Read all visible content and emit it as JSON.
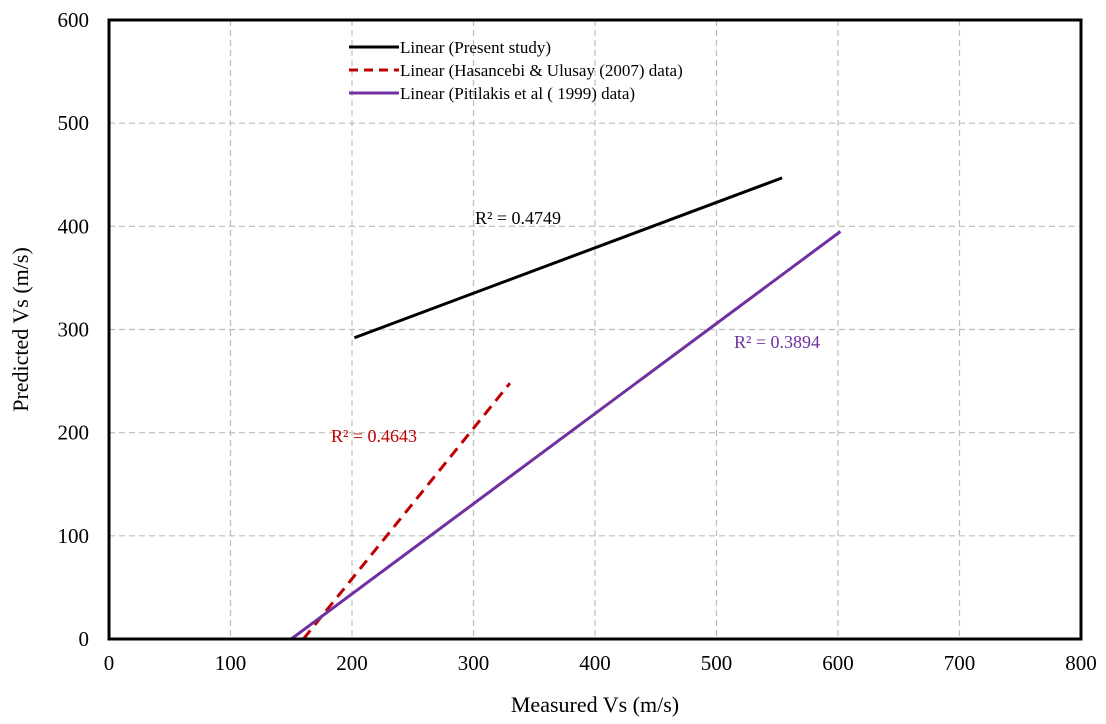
{
  "chart_data": {
    "type": "line",
    "xlabel": "Measured Vs (m/s)",
    "ylabel": "Predicted Vs (m/s)",
    "xlim": [
      0,
      800
    ],
    "ylim": [
      0,
      600
    ],
    "x_ticks": [
      0,
      100,
      200,
      300,
      400,
      500,
      600,
      700,
      800
    ],
    "y_ticks": [
      0,
      100,
      200,
      300,
      400,
      500,
      600
    ],
    "grid": true,
    "legend_position": "top-center",
    "series": [
      {
        "name": "Linear (Present study)",
        "color": "#000000",
        "dash": "solid",
        "x": [
          202,
          554
        ],
        "y": [
          292,
          447
        ],
        "r2_label": "R² = 0.4749",
        "r2_color": "#000000"
      },
      {
        "name": "Linear (Hasancebi & Ulusay (2007) data)",
        "color": "#c00000",
        "dash": "dashed",
        "x": [
          160,
          330
        ],
        "y": [
          0,
          248
        ],
        "r2_label": "R² = 0.4643",
        "r2_color": "#c00000"
      },
      {
        "name": "Linear (Pitilakis et al  ( 1999) data)",
        "color": "#7030a0",
        "dash": "solid",
        "x": [
          150,
          602
        ],
        "y": [
          0,
          395
        ],
        "r2_label": "R² = 0.3894",
        "r2_color": "#7030a0"
      }
    ]
  }
}
